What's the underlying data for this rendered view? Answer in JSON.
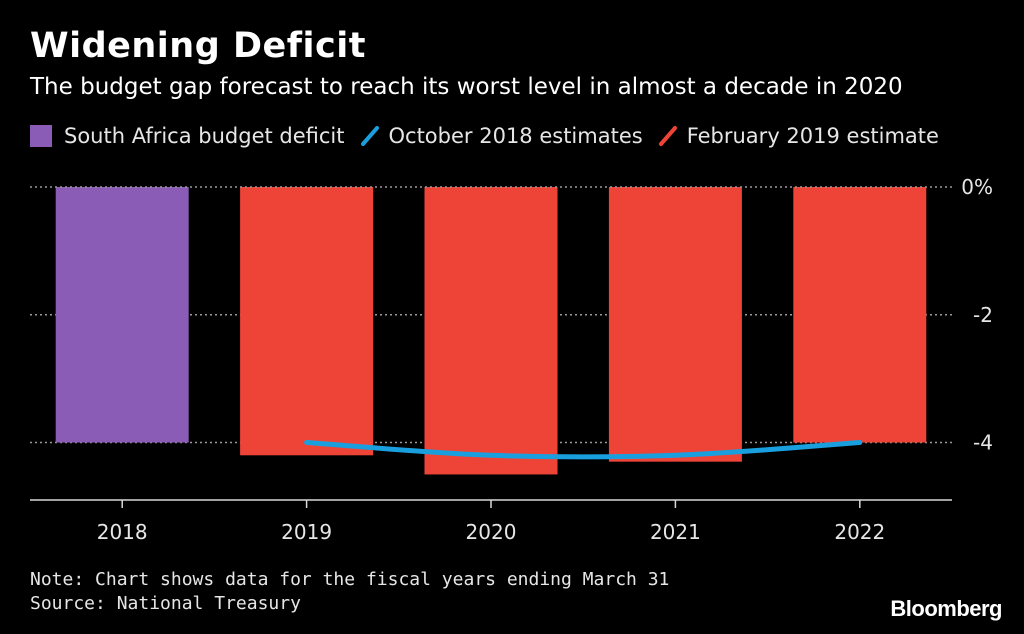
{
  "header": {
    "title": "Widening Deficit",
    "subtitle": "The budget gap forecast to reach its worst level in almost a decade in 2020"
  },
  "legend": [
    {
      "label": "South Africa budget deficit",
      "color": "#8a5cb5",
      "icon": "square-swatch"
    },
    {
      "label": "October 2018 estimates",
      "color": "#1a9fde",
      "icon": "slash-swatch"
    },
    {
      "label": "February 2019 estimate",
      "color": "#ee4437",
      "icon": "slash-swatch"
    }
  ],
  "chart_data": {
    "type": "bar",
    "categories": [
      "2018",
      "2019",
      "2020",
      "2021",
      "2022"
    ],
    "series": [
      {
        "name": "South Africa budget deficit",
        "type": "bar",
        "color": "#8a5cb5",
        "values": [
          -4.0,
          null,
          null,
          null,
          null
        ]
      },
      {
        "name": "February 2019 estimate",
        "type": "bar",
        "color": "#ee4437",
        "values": [
          null,
          -4.2,
          -4.5,
          -4.3,
          -4.0
        ]
      },
      {
        "name": "October 2018 estimates",
        "type": "line",
        "color": "#1a9fde",
        "values": [
          null,
          -4.0,
          -4.2,
          -4.2,
          -4.0
        ]
      }
    ],
    "ylim": [
      -4.9,
      0
    ],
    "yticks": [
      0,
      -2,
      -4
    ],
    "ytick_labels": [
      "0%",
      "-2",
      "-4"
    ],
    "grid": true,
    "legend_position": "top-left"
  },
  "footer": {
    "note": "Note: Chart shows data for the fiscal years ending March 31",
    "source": "Source: National Treasury",
    "brand": "Bloomberg"
  }
}
